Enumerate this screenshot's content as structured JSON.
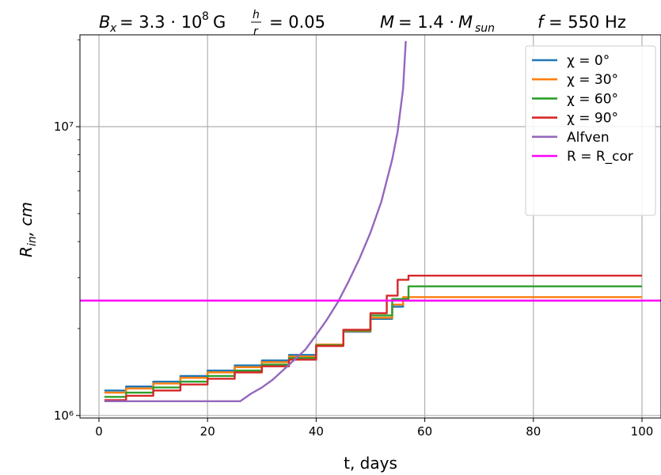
{
  "chart_data": {
    "type": "line",
    "title": "B_x = 3.3·10⁸ G   h/r = 0.05   M = 1.4·M_sun   f = 550 Hz",
    "xlabel": "t, days",
    "ylabel": "R_in, cm",
    "xlim": [
      -3.5,
      103.5
    ],
    "ylim": [
      980000,
      20800000
    ],
    "yscale": "log",
    "grid": true,
    "legend_position": "top-right",
    "x_ticks": [
      0,
      20,
      40,
      60,
      80,
      100
    ],
    "y_ticks": [
      {
        "value": 1000000,
        "label": "10⁶"
      },
      {
        "value": 10000000,
        "label": "10⁷"
      }
    ],
    "series": [
      {
        "name": "χ = 0°",
        "color": "#1f77b4",
        "style": "steps",
        "x": [
          1,
          5,
          10,
          15,
          20,
          25,
          30,
          35,
          40,
          45,
          50,
          54,
          56,
          100
        ],
        "y": [
          1220000,
          1260000,
          1310000,
          1370000,
          1430000,
          1490000,
          1550000,
          1620000,
          1760000,
          1950000,
          2160000,
          2380000,
          2500000,
          2500000
        ]
      },
      {
        "name": "χ = 30°",
        "color": "#ff7f0e",
        "style": "steps",
        "x": [
          1,
          5,
          10,
          15,
          20,
          25,
          30,
          35,
          40,
          45,
          50,
          54,
          56,
          100
        ],
        "y": [
          1200000,
          1240000,
          1290000,
          1350000,
          1410000,
          1470000,
          1530000,
          1600000,
          1760000,
          1960000,
          2180000,
          2420000,
          2570000,
          2570000
        ]
      },
      {
        "name": "χ = 60°",
        "color": "#2ca02c",
        "style": "steps",
        "x": [
          1,
          5,
          10,
          15,
          20,
          25,
          30,
          35,
          40,
          45,
          50,
          54,
          57,
          100
        ],
        "y": [
          1160000,
          1200000,
          1250000,
          1310000,
          1370000,
          1430000,
          1500000,
          1580000,
          1750000,
          1970000,
          2220000,
          2530000,
          2800000,
          2800000
        ]
      },
      {
        "name": "χ = 90°",
        "color": "#d62728",
        "style": "steps",
        "x": [
          1,
          5,
          10,
          15,
          20,
          25,
          30,
          35,
          40,
          45,
          50,
          53,
          55,
          57,
          100
        ],
        "y": [
          1130000,
          1170000,
          1220000,
          1280000,
          1340000,
          1410000,
          1480000,
          1560000,
          1740000,
          1980000,
          2260000,
          2600000,
          2950000,
          3050000,
          3050000
        ]
      },
      {
        "name": "Alfven",
        "color": "#9467bd",
        "style": "line",
        "x": [
          1,
          26,
          28,
          30,
          32,
          34,
          36,
          38,
          40,
          42,
          44,
          46,
          48,
          50,
          52,
          54,
          55,
          56,
          56.5
        ],
        "y": [
          1120000,
          1120000,
          1190000,
          1250000,
          1330000,
          1440000,
          1560000,
          1690000,
          1900000,
          2150000,
          2470000,
          2920000,
          3500000,
          4300000,
          5500000,
          7700000,
          9600000,
          13500000,
          19800000
        ]
      },
      {
        "name": "R = R_cor",
        "color": "#ff00ff",
        "style": "hline",
        "x": [
          -3.5,
          103.5
        ],
        "y": [
          2500000,
          2500000
        ]
      }
    ]
  }
}
